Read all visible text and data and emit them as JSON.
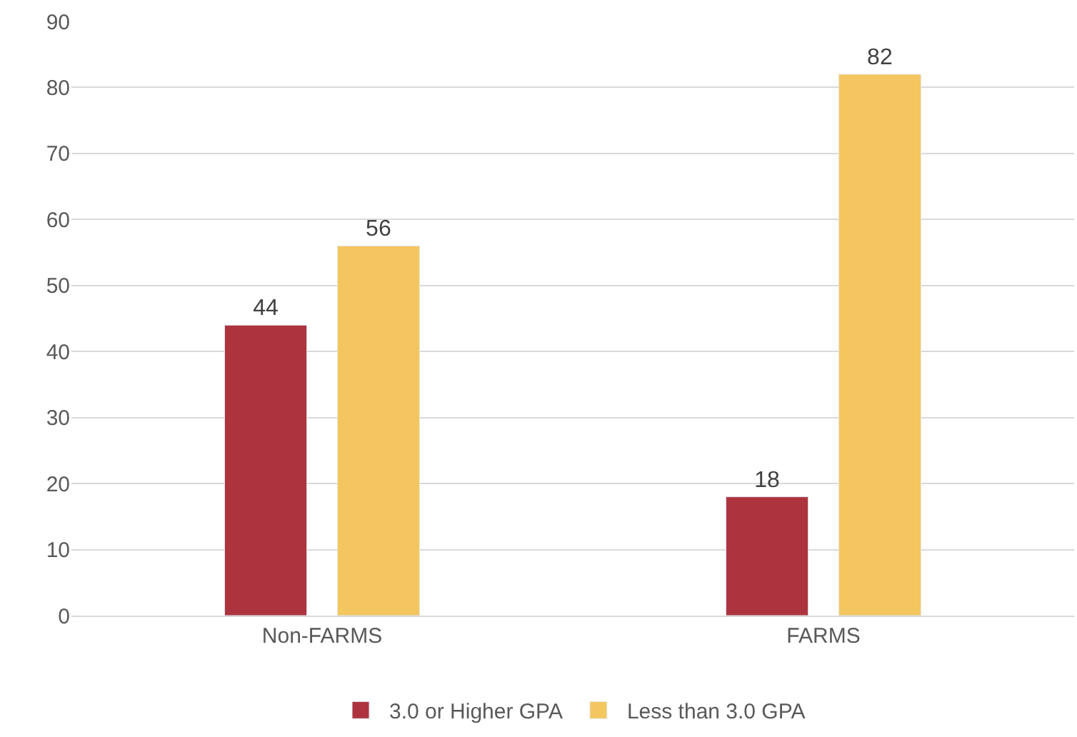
{
  "chart_data": {
    "type": "bar",
    "categories": [
      "Non-FARMS",
      "FARMS"
    ],
    "series": [
      {
        "name": "3.0 or Higher GPA",
        "color": "#ad343e",
        "values": [
          44,
          18
        ]
      },
      {
        "name": "Less than 3.0 GPA",
        "color": "#f3c65f",
        "values": [
          56,
          82
        ]
      }
    ],
    "ylim": [
      0,
      90
    ],
    "yticks": [
      0,
      10,
      20,
      30,
      40,
      50,
      60,
      70,
      80,
      90
    ],
    "grid": "y",
    "legend": "bottom",
    "data_labels": true
  }
}
